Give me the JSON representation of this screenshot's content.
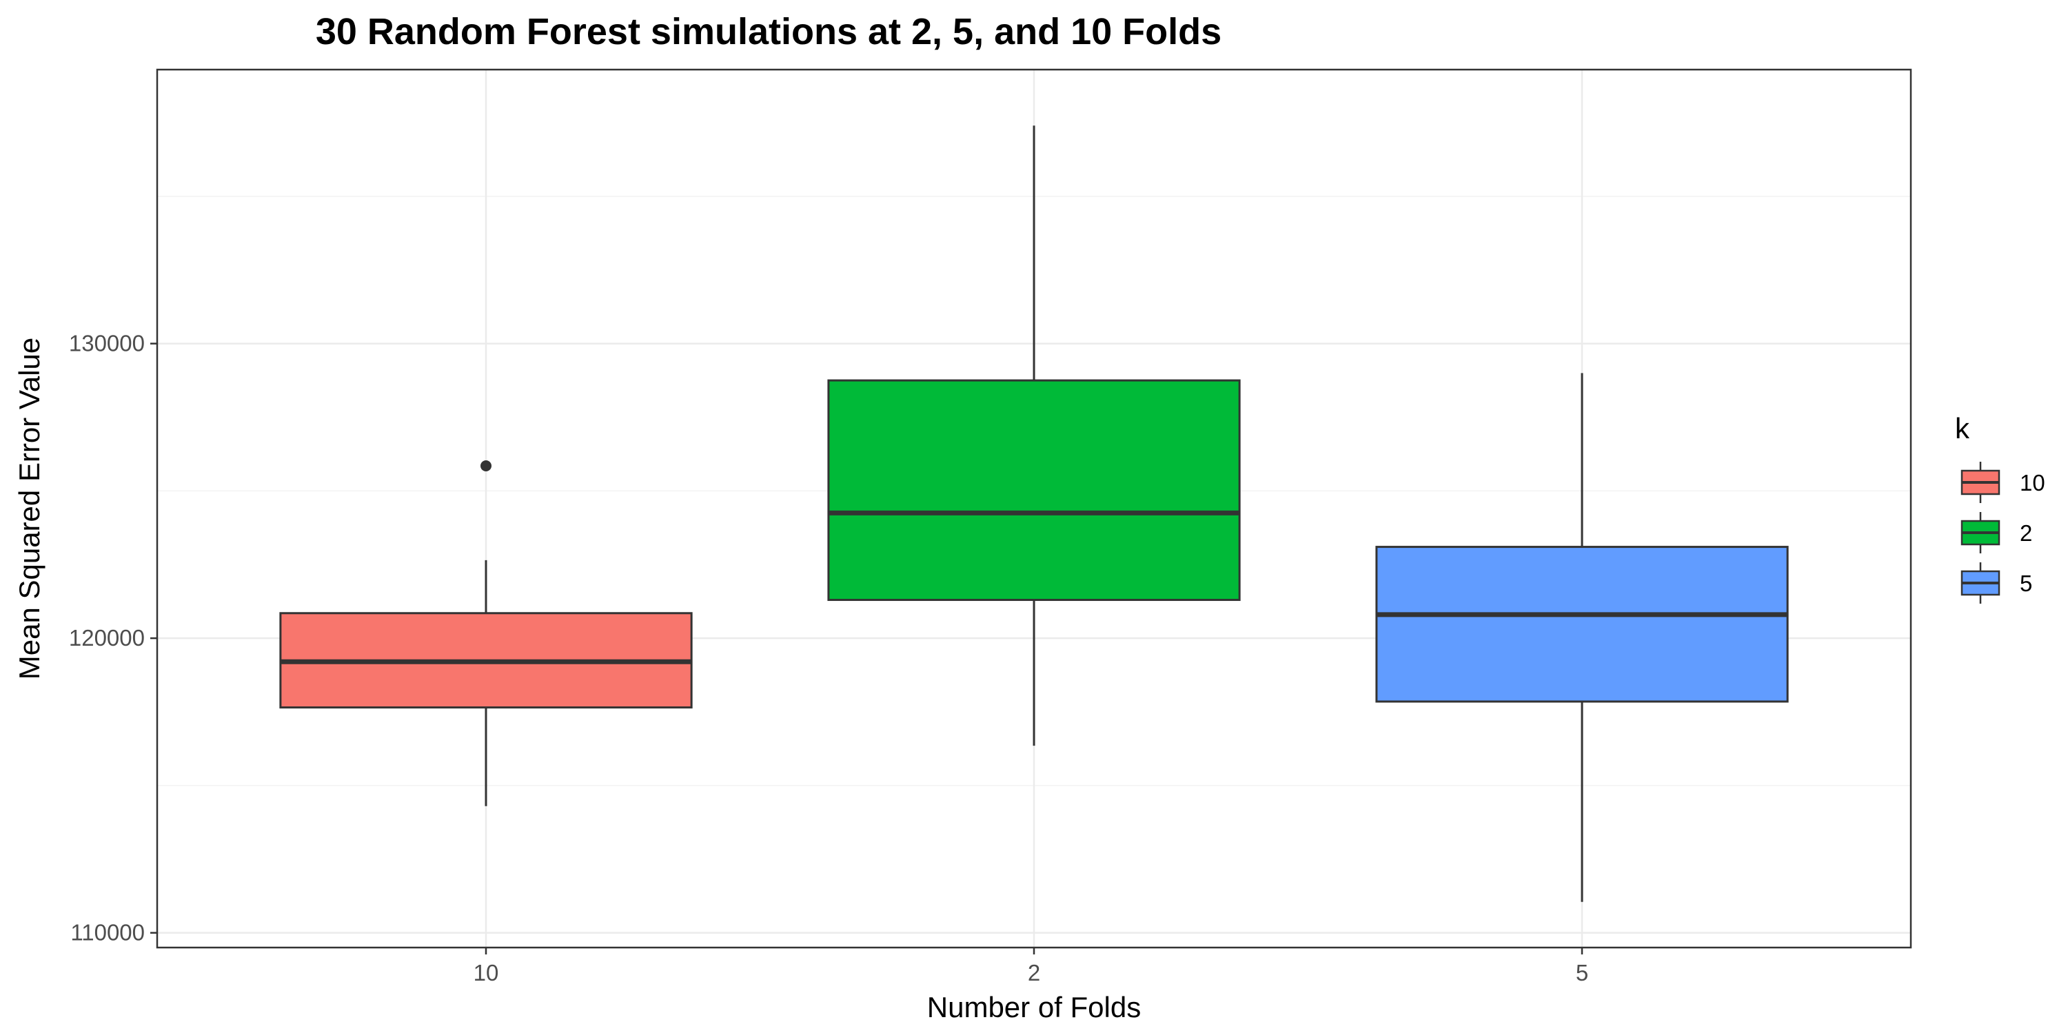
{
  "chart_data": {
    "type": "box",
    "title": "30 Random Forest simulations at 2, 5, and 10 Folds",
    "xlabel": "Number of Folds",
    "ylabel": "Mean Squared Error Value",
    "categories": [
      "10",
      "2",
      "5"
    ],
    "boxes": [
      {
        "category": "10",
        "whisker_low": 114300,
        "q1": 117650,
        "median": 119200,
        "q3": 120850,
        "whisker_high": 122650,
        "outliers": [
          125850
        ],
        "color": "#F8766D"
      },
      {
        "category": "2",
        "whisker_low": 116350,
        "q1": 121300,
        "median": 124250,
        "q3": 128750,
        "whisker_high": 137400,
        "outliers": [],
        "color": "#00BA38"
      },
      {
        "category": "5",
        "whisker_low": 111050,
        "q1": 117850,
        "median": 120800,
        "q3": 123100,
        "whisker_high": 129000,
        "outliers": [],
        "color": "#619CFF"
      }
    ],
    "yticks": [
      110000,
      120000,
      130000
    ],
    "yticks_minor": [
      115000,
      125000,
      135000
    ],
    "ylim": [
      109500,
      139300
    ],
    "grid": true,
    "legend": {
      "title": "k",
      "position": "right",
      "entries": [
        {
          "label": "10",
          "color": "#F8766D"
        },
        {
          "label": "2",
          "color": "#00BA38"
        },
        {
          "label": "5",
          "color": "#619CFF"
        }
      ]
    }
  }
}
